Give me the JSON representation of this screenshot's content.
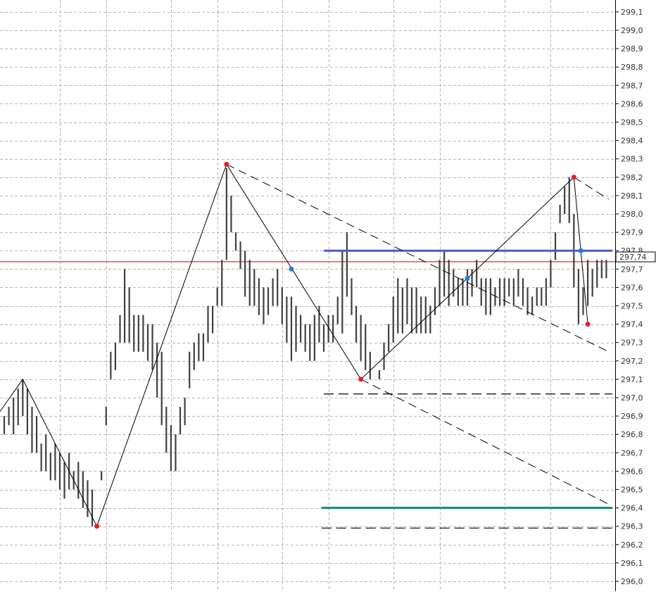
{
  "chart_data": {
    "type": "line",
    "title": "",
    "xlabel": "",
    "ylabel": "",
    "ylim": [
      296.0,
      299.1
    ],
    "x_grid_bars": [
      -2,
      12,
      22,
      36,
      46,
      60,
      70,
      84,
      94,
      108,
      118,
      132,
      142,
      156,
      166
    ],
    "y_ticks": [
      "296,0",
      "296,1",
      "296,2",
      "296,3",
      "296,4",
      "296,5",
      "296,6",
      "296,7",
      "296,8",
      "296,9",
      "297,0",
      "297,1",
      "297,2",
      "297,3",
      "297,4",
      "297,5",
      "297,6",
      "297,7",
      "297,8",
      "297,9",
      "298,0",
      "298,1",
      "298,2",
      "298,3",
      "298,4",
      "298,5",
      "298,6",
      "298,7",
      "298,8",
      "298,9",
      "299,0",
      "299,1"
    ],
    "current_price": 297.74,
    "current_price_label": "297,74",
    "bar_series": {
      "name": "",
      "highs": [
        296.9,
        296.95,
        297.0,
        297.05,
        297.1,
        297.05,
        296.95,
        296.9,
        296.75,
        296.8,
        296.7,
        296.75,
        296.7,
        296.65,
        296.7,
        296.6,
        296.65,
        296.6,
        296.55,
        296.5,
        296.3,
        296.6,
        296.95,
        297.25,
        297.3,
        297.45,
        297.7,
        297.6,
        297.45,
        297.45,
        297.45,
        297.4,
        297.4,
        297.3,
        297.25,
        296.95,
        296.85,
        296.8,
        296.95,
        297.0,
        297.25,
        297.3,
        297.35,
        297.35,
        297.5,
        297.5,
        297.6,
        297.75,
        298.25,
        298.1,
        297.9,
        297.85,
        297.8,
        297.75,
        297.7,
        297.65,
        297.6,
        297.6,
        297.65,
        297.7,
        297.6,
        297.55,
        297.55,
        297.5,
        297.45,
        297.4,
        297.4,
        297.45,
        297.5,
        297.4,
        297.45,
        297.45,
        297.55,
        297.8,
        297.9,
        297.65,
        297.5,
        297.45,
        297.4,
        297.25,
        297.1,
        297.15,
        297.3,
        297.4,
        297.55,
        297.65,
        297.6,
        297.65,
        297.6,
        297.6,
        297.55,
        297.55,
        297.5,
        297.6,
        297.75,
        297.8,
        297.75,
        297.7,
        297.65,
        297.65,
        297.7,
        297.7,
        297.75,
        297.65,
        297.65,
        297.65,
        297.6,
        297.65,
        297.65,
        297.65,
        297.65,
        297.7,
        297.65,
        297.6,
        297.55,
        297.6,
        297.6,
        297.65,
        297.75,
        297.9,
        298.05,
        298.15,
        298.2,
        298.0,
        297.7,
        297.6,
        297.75,
        297.7,
        297.75,
        297.75,
        297.75
      ],
      "lows": [
        296.8,
        296.85,
        296.8,
        296.85,
        296.9,
        296.8,
        296.7,
        296.7,
        296.6,
        296.6,
        296.55,
        296.55,
        296.5,
        296.45,
        296.5,
        296.5,
        296.45,
        296.4,
        296.35,
        296.3,
        296.3,
        296.55,
        296.85,
        297.1,
        297.15,
        297.3,
        297.3,
        297.3,
        297.25,
        297.25,
        297.25,
        297.2,
        297.15,
        297.0,
        296.85,
        296.7,
        296.6,
        296.6,
        296.8,
        296.85,
        297.05,
        297.15,
        297.2,
        297.2,
        297.3,
        297.35,
        297.5,
        297.5,
        297.75,
        297.9,
        297.8,
        297.7,
        297.55,
        297.5,
        297.5,
        297.45,
        297.4,
        297.45,
        297.5,
        297.5,
        297.4,
        297.3,
        297.2,
        297.25,
        297.3,
        297.25,
        297.2,
        297.2,
        297.3,
        297.25,
        297.3,
        297.3,
        297.4,
        297.35,
        297.55,
        297.45,
        297.3,
        297.2,
        297.15,
        297.1,
        297.1,
        297.1,
        297.15,
        297.25,
        297.3,
        297.35,
        297.35,
        297.4,
        297.35,
        297.35,
        297.35,
        297.35,
        297.35,
        297.45,
        297.5,
        297.55,
        297.5,
        297.55,
        297.5,
        297.5,
        297.5,
        297.55,
        297.6,
        297.5,
        297.45,
        297.45,
        297.5,
        297.5,
        297.5,
        297.55,
        297.5,
        297.55,
        297.5,
        297.45,
        297.45,
        297.5,
        297.5,
        297.5,
        297.6,
        297.75,
        297.95,
        298.0,
        297.95,
        297.6,
        297.4,
        297.45,
        297.5,
        297.55,
        297.6,
        297.65,
        297.65
      ]
    },
    "zigzag": [
      {
        "bar": -3,
        "price": 296.85
      },
      {
        "bar": 4,
        "price": 297.1
      },
      {
        "bar": 20,
        "price": 296.3
      },
      {
        "bar": 48,
        "price": 298.27
      },
      {
        "bar": 77,
        "price": 297.1
      },
      {
        "bar": 123,
        "price": 298.2
      },
      {
        "bar": 126,
        "price": 297.4
      }
    ],
    "pivot_points": [
      {
        "bar": 20,
        "price": 296.3
      },
      {
        "bar": 48,
        "price": 298.27
      },
      {
        "bar": 77,
        "price": 297.1
      },
      {
        "bar": 123,
        "price": 298.2
      },
      {
        "bar": 126,
        "price": 297.4
      }
    ],
    "info_points": [
      {
        "bar": 62,
        "price": 297.7
      },
      {
        "bar": 100,
        "price": 297.65
      },
      {
        "bar": 124.5,
        "price": 297.8
      }
    ],
    "trend_lines": [
      {
        "bar1": 48,
        "price1": 298.27,
        "bar2": 130.5,
        "price2": 297.25
      },
      {
        "bar1": 123,
        "price1": 298.2,
        "bar2": 130.5,
        "price2": 298.08
      },
      {
        "bar1": 77,
        "price1": 297.1,
        "bar2": 130.5,
        "price2": 296.42
      }
    ],
    "levels": [
      {
        "name": "blue-level",
        "price": 297.8,
        "from_bar": 69,
        "color": "#4a5cc8",
        "style": "solid-thick"
      },
      {
        "name": "teal-level",
        "price": 296.4,
        "from_bar": 68.5,
        "color": "#0f8a80",
        "style": "solid-thick"
      },
      {
        "name": "dashed-level-upper",
        "price": 297.02,
        "from_bar": 69,
        "color": "#000000",
        "style": "dashed"
      },
      {
        "name": "dashed-level-lower",
        "price": 296.29,
        "from_bar": 68.5,
        "color": "#000000",
        "style": "dashed"
      }
    ],
    "colors": {
      "bars": "#404040",
      "zigzag": "#000000",
      "pivot": "#e31e1e",
      "info": "#1e7ae3",
      "current_price_line": "#a01010",
      "grid": "#b4b4b4"
    }
  }
}
